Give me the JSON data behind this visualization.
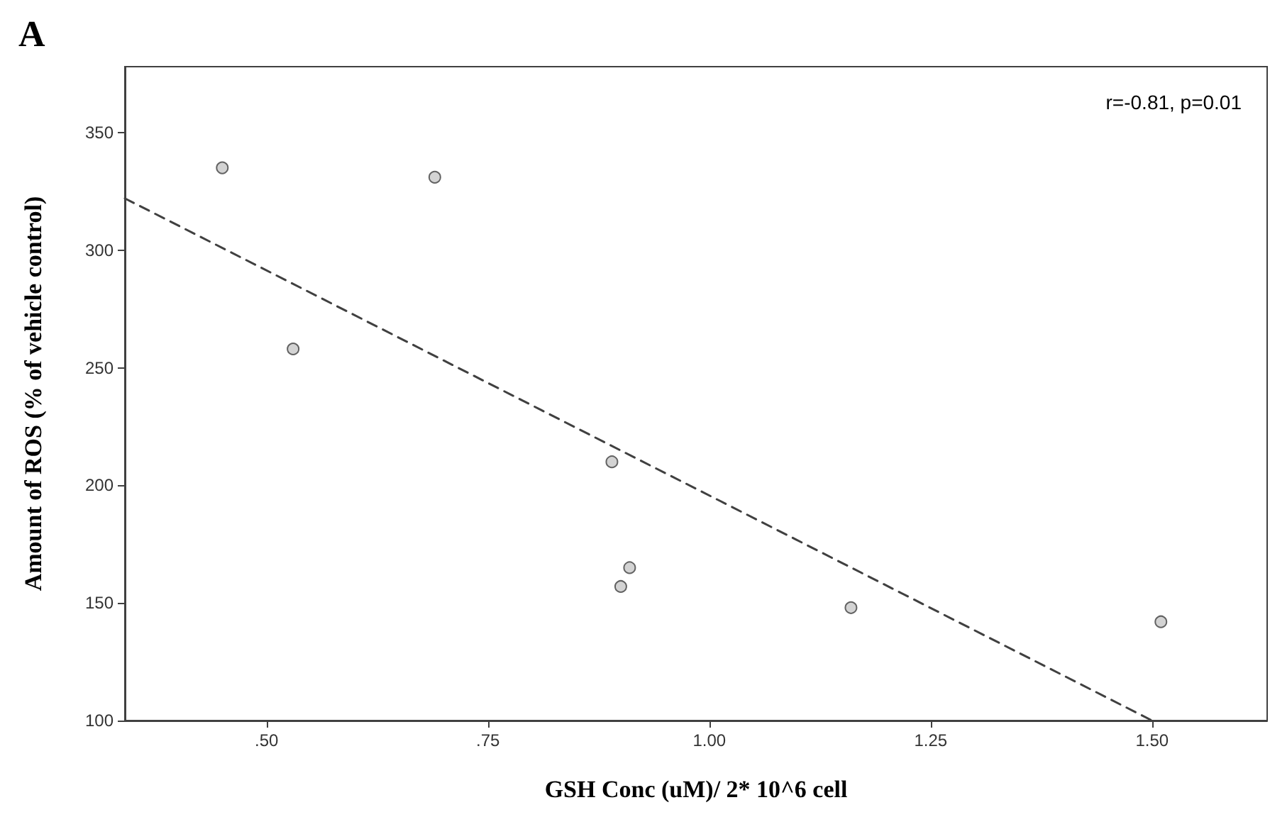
{
  "chart_data": {
    "type": "scatter",
    "title": "A",
    "xlabel": "GSH Conc (uM)/ 2* 10^6 cell",
    "ylabel": "Amount of ROS (% of vehicle control)",
    "annotations": [
      "r=-0.81, p=0.01"
    ],
    "x": [
      0.45,
      0.53,
      0.69,
      0.89,
      0.9,
      0.91,
      1.16,
      1.51
    ],
    "series": [
      {
        "color": "#c8c8c8",
        "values": [
          335,
          258,
          331,
          210,
          157,
          165,
          148,
          142
        ]
      },
      {
        "type": "line",
        "color": "#404040",
        "line_style": "dashed",
        "marker": "none",
        "x": [
          0.34,
          1.5
        ],
        "values": [
          322,
          100
        ]
      }
    ],
    "marker": "circle",
    "grid": false,
    "xlim": [
      0.34,
      1.63
    ],
    "ylim": [
      100,
      378
    ],
    "xticks": [
      {
        "value": 0.5,
        "label": ".50"
      },
      {
        "value": 0.75,
        "label": ".75"
      },
      {
        "value": 1.0,
        "label": "1.00"
      },
      {
        "value": 1.25,
        "label": "1.25"
      },
      {
        "value": 1.5,
        "label": "1.50"
      }
    ],
    "yticks": [
      100,
      150,
      200,
      250,
      300,
      350
    ]
  }
}
